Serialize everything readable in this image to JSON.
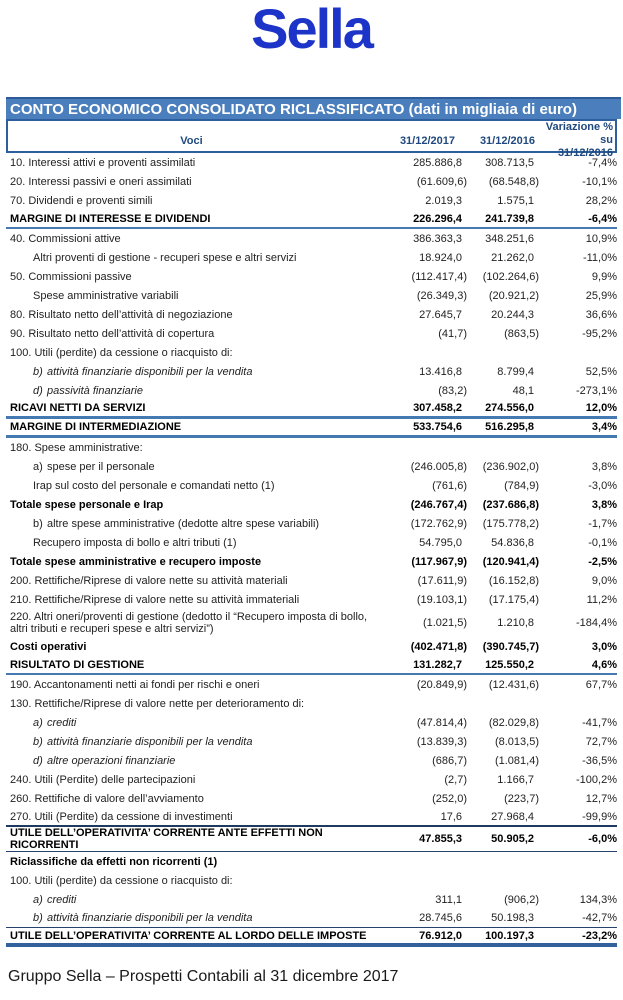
{
  "logo": "Sella",
  "title_bar": "CONTO ECONOMICO CONSOLIDATO RICLASSIFICATO (dati in migliaia di euro)",
  "colors": {
    "logo_blue": "#1c34c8",
    "bar_blue": "#4a7ebc",
    "header_text_blue": "#1f497d",
    "separator_blue": "#4579b2",
    "separator_navy": "#1f3a5f"
  },
  "table": {
    "header": {
      "voci": "Voci",
      "col2017": "31/12/2017",
      "col2016": "31/12/2016",
      "var_line1": "Variazione % su",
      "var_line2": "31/12/2016"
    },
    "rows": [
      {
        "label": "10. Interessi attivi e proventi assimilati",
        "v17": "285.886,8",
        "v16": "308.713,5",
        "var": "-7,4%"
      },
      {
        "label": "20. Interessi passivi e oneri assimilati",
        "v17": "(61.609,6)",
        "v16": "(68.548,8)",
        "var": "-10,1%"
      },
      {
        "label": "70. Dividendi e proventi simili",
        "v17": "2.019,3",
        "v16": "1.575,1",
        "var": "28,2%"
      },
      {
        "label": "MARGINE DI INTERESSE E DIVIDENDI",
        "v17": "226.296,4",
        "v16": "241.739,8",
        "var": "-6,4%",
        "bold": true,
        "sep": "blue2"
      },
      {
        "label": "40. Commissioni attive",
        "v17": "386.363,3",
        "v16": "348.251,6",
        "var": "10,9%"
      },
      {
        "label": "Altri proventi di gestione - recuperi spese e altri servizi",
        "v17": "18.924,0",
        "v16": "21.262,0",
        "var": "-11,0%",
        "indent": true
      },
      {
        "label": "50. Commissioni passive",
        "v17": "(112.417,4)",
        "v16": "(102.264,6)",
        "var": "9,9%"
      },
      {
        "label": "Spese amministrative variabili",
        "v17": "(26.349,3)",
        "v16": "(20.921,2)",
        "var": "25,9%",
        "indent": true
      },
      {
        "label": "80. Risultato netto dell’attività di negoziazione",
        "v17": "27.645,7",
        "v16": "20.244,3",
        "var": "36,6%"
      },
      {
        "label": "90. Risultato netto dell’attività di copertura",
        "v17": "(41,7)",
        "v16": "(863,5)",
        "var": "-95,2%"
      },
      {
        "label": "100. Utili (perdite) da cessione o riacquisto di:",
        "v17": "",
        "v16": "",
        "var": ""
      },
      {
        "label": "attività finanziarie disponibili per la vendita",
        "letter": "b)",
        "v17": "13.416,8",
        "v16": "8.799,4",
        "var": "52,5%",
        "indent": true,
        "italic": true
      },
      {
        "label": "passività finanziarie",
        "letter": "d)",
        "v17": "(83,2)",
        "v16": "48,1",
        "var": "-273,1%",
        "indent": true,
        "italic": true
      },
      {
        "label": "RICAVI NETTI DA SERVIZI",
        "v17": "307.458,2",
        "v16": "274.556,0",
        "var": "12,0%",
        "bold": true,
        "sep": "blue3"
      },
      {
        "label": "MARGINE DI INTERMEDIAZIONE",
        "v17": "533.754,6",
        "v16": "516.295,8",
        "var": "3,4%",
        "bold": true,
        "sep": "blue3"
      },
      {
        "label": "180. Spese amministrative:",
        "v17": "",
        "v16": "",
        "var": ""
      },
      {
        "label": "spese per il personale",
        "letter": "a)",
        "v17": "(246.005,8)",
        "v16": "(236.902,0)",
        "var": "3,8%",
        "indent": true
      },
      {
        "label": "Irap sul costo del personale e comandati netto (1)",
        "v17": "(761,6)",
        "v16": "(784,9)",
        "var": "-3,0%",
        "indent": true
      },
      {
        "label": "Totale spese personale e Irap",
        "v17": "(246.767,4)",
        "v16": "(237.686,8)",
        "var": "3,8%",
        "bold": true
      },
      {
        "label": "altre spese amministrative (dedotte altre spese variabili)",
        "letter": "b)",
        "v17": "(172.762,9)",
        "v16": "(175.778,2)",
        "var": "-1,7%",
        "indent": true
      },
      {
        "label": "Recupero imposta di bollo e altri tributi (1)",
        "v17": "54.795,0",
        "v16": "54.836,8",
        "var": "-0,1%",
        "indent": true
      },
      {
        "label": "Totale spese amministrative e recupero imposte",
        "v17": "(117.967,9)",
        "v16": "(120.941,4)",
        "var": "-2,5%",
        "bold": true
      },
      {
        "label": "200. Rettifiche/Riprese di valore nette su attività materiali",
        "v17": "(17.611,9)",
        "v16": "(16.152,8)",
        "var": "9,0%"
      },
      {
        "label": "210. Rettifiche/Riprese di valore nette su attività immateriali",
        "v17": "(19.103,1)",
        "v16": "(17.175,4)",
        "var": "11,2%"
      },
      {
        "label": "220. Altri oneri/proventi di gestione (dedotto il “Recupero imposta di bollo, altri tributi e recuperi spese e altri servizi”)",
        "v17": "(1.021,5)",
        "v16": "1.210,8",
        "var": "-184,4%",
        "wrap": true
      },
      {
        "label": "Costi operativi",
        "v17": "(402.471,8)",
        "v16": "(390.745,7)",
        "var": "3,0%",
        "bold": true
      },
      {
        "label": "RISULTATO DI GESTIONE",
        "v17": "131.282,7",
        "v16": "125.550,2",
        "var": "4,6%",
        "bold": true,
        "sep": "blue2"
      },
      {
        "label": "190. Accantonamenti netti ai fondi per rischi e oneri",
        "v17": "(20.849,9)",
        "v16": "(12.431,6)",
        "var": "67,7%"
      },
      {
        "label": "130. Rettifiche/Riprese di valore nette per deterioramento di:",
        "v17": "",
        "v16": "",
        "var": ""
      },
      {
        "label": "crediti",
        "letter": "a)",
        "v17": "(47.814,4)",
        "v16": "(82.029,8)",
        "var": "-41,7%",
        "indent": true,
        "italic": true
      },
      {
        "label": "attività finanziarie disponibili per la vendita",
        "letter": "b)",
        "v17": "(13.839,3)",
        "v16": "(8.013,5)",
        "var": "72,7%",
        "indent": true,
        "italic": true
      },
      {
        "label": "altre operazioni finanziarie",
        "letter": "d)",
        "v17": "(686,7)",
        "v16": "(1.081,4)",
        "var": "-36,5%",
        "indent": true,
        "italic": true
      },
      {
        "label": "240. Utili (Perdite) delle partecipazioni",
        "v17": "(2,7)",
        "v16": "1.166,7",
        "var": "-100,2%"
      },
      {
        "label": "260. Rettifiche di valore dell’avviamento",
        "v17": "(252,0)",
        "v16": "(223,7)",
        "var": "12,7%"
      },
      {
        "label": "270. Utili (Perdite) da cessione di investimenti",
        "v17": "17,6",
        "v16": "27.968,4",
        "var": "-99,9%",
        "sep": "navy2"
      },
      {
        "label": "UTILE DELL’OPERATIVITA’ CORRENTE ANTE EFFETTI NON RICORRENTI",
        "v17": "47.855,3",
        "v16": "50.905,2",
        "var": "-6,0%",
        "bold": true,
        "sep": "navy1"
      },
      {
        "label": "Riclassifiche da effetti non ricorrenti (1)",
        "v17": "",
        "v16": "",
        "var": "",
        "bold": true
      },
      {
        "label": "100. Utili (perdite) da cessione o riacquisto di:",
        "v17": "",
        "v16": "",
        "var": ""
      },
      {
        "label": "crediti",
        "letter": "a)",
        "v17": "311,1",
        "v16": "(906,2)",
        "var": "134,3%",
        "indent": true,
        "italic": true
      },
      {
        "label": "attività finanziarie disponibili per la vendita",
        "letter": "b)",
        "v17": "28.745,6",
        "v16": "50.198,3",
        "var": "-42,7%",
        "indent": true,
        "italic": true,
        "sep": "navy1"
      },
      {
        "label": "UTILE DELL’OPERATIVITA’ CORRENTE AL LORDO DELLE IMPOSTE",
        "v17": "76.912,0",
        "v16": "100.197,3",
        "var": "-23,2%",
        "bold": true,
        "sep": "thick"
      }
    ]
  },
  "footer": "Gruppo Sella – Prospetti Contabili al 31 dicembre 2017"
}
